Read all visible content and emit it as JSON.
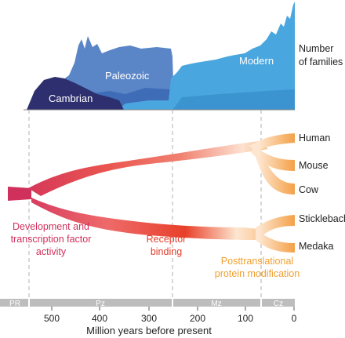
{
  "top_panel": {
    "faunas": [
      {
        "name": "Cambrian",
        "color": "#2e2f6e"
      },
      {
        "name": "Paleozoic",
        "color": "#5a86c8"
      },
      {
        "name": "Modern",
        "color": "#4aa6de"
      }
    ],
    "ylabel_lines": [
      "Number",
      "of families"
    ]
  },
  "tree": {
    "leaves": [
      "Human",
      "Mouse",
      "Cow",
      "Stickleback",
      "Medaka"
    ],
    "annotations": [
      {
        "lines": [
          "Development and",
          "transcription factor",
          "activity"
        ],
        "color": "#d0305c"
      },
      {
        "lines": [
          "Receptor",
          "binding"
        ],
        "color": "#e43c2a"
      },
      {
        "lines": [
          "Posttranslational",
          "protein modification"
        ],
        "color": "#f0a030"
      }
    ]
  },
  "eras": [
    {
      "label": "PR"
    },
    {
      "label": "Pz"
    },
    {
      "label": "Mz"
    },
    {
      "label": "Cz"
    }
  ],
  "axis": {
    "ticks": [
      "500",
      "400",
      "300",
      "200",
      "100",
      "0"
    ],
    "xlabel": "Million years before present"
  },
  "colors": {
    "era_bar": "#bdbdbd",
    "dashed_lines": "#b0b0b0",
    "tree_start": "#d0305c",
    "tree_mid": "#e84a3c",
    "tree_end": "#f4a24a"
  }
}
